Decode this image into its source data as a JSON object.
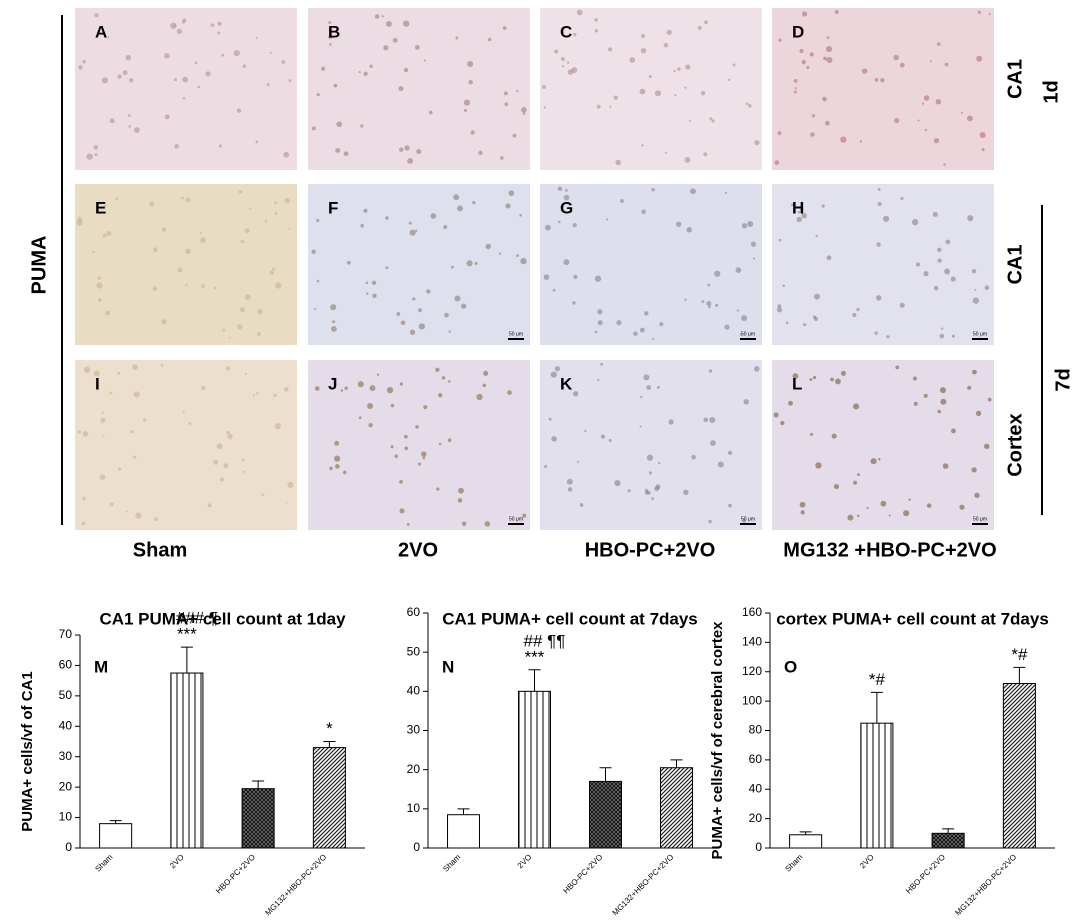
{
  "figure": {
    "side_label": "PUMA",
    "panels": [
      "A",
      "B",
      "C",
      "D",
      "E",
      "F",
      "G",
      "H",
      "I",
      "J",
      "K",
      "L"
    ],
    "columns": [
      "Sham",
      "2VO",
      "HBO-PC+2VO",
      "MG132 +HBO-PC+2VO"
    ],
    "row_labels": [
      "CA1",
      "CA1",
      "Cortex"
    ],
    "time_labels": [
      "1d",
      "7d"
    ],
    "scale_label": "50 μm"
  },
  "chart_data": [
    {
      "type": "bar",
      "panel": "M",
      "title": "CA1 PUMA+ cell count at 1day",
      "y_label": "PUMA+ cells/vf of CA1",
      "categories": [
        "Sham",
        "2VO",
        "HBO-PC+2VO",
        "MG132+HBO-PC+2VO"
      ],
      "values": [
        8,
        57.5,
        19.5,
        33
      ],
      "errors": [
        1,
        8.5,
        2.5,
        2
      ],
      "fills": [
        "solid",
        "vertical",
        "cross",
        "diagonal"
      ],
      "significance": [
        [],
        [
          "### ¶",
          "***"
        ],
        [],
        [
          "*"
        ]
      ],
      "ylim": [
        0,
        70
      ],
      "yticks": [
        0,
        10,
        20,
        30,
        40,
        50,
        60,
        70
      ]
    },
    {
      "type": "bar",
      "panel": "N",
      "title": "CA1 PUMA+ cell count at 7days",
      "categories": [
        "Sham",
        "2VO",
        "HBO-PC+2VO",
        "MG132+HBO-PC+2VO"
      ],
      "values": [
        8.5,
        40,
        17,
        20.5
      ],
      "errors": [
        1.5,
        5.5,
        3.5,
        2
      ],
      "fills": [
        "solid",
        "vertical",
        "cross",
        "diagonal"
      ],
      "significance": [
        [],
        [
          "## ¶¶",
          "***"
        ],
        [],
        []
      ],
      "ylim": [
        0,
        60
      ],
      "yticks": [
        0,
        10,
        20,
        30,
        40,
        50,
        60
      ]
    },
    {
      "type": "bar",
      "panel": "O",
      "title": "cortex PUMA+ cell count at 7days",
      "y_label": "PUMA+ cells/vf of cerebral cortex",
      "categories": [
        "Sham",
        "2VO",
        "HBO-PC+2VO",
        "MG132+HBO-PC+2VO"
      ],
      "values": [
        9,
        85,
        10,
        112
      ],
      "errors": [
        2,
        21,
        3,
        11
      ],
      "fills": [
        "solid",
        "vertical",
        "cross",
        "diagonal"
      ],
      "significance": [
        [],
        [
          "*#"
        ],
        [],
        [
          "*#"
        ]
      ],
      "ylim": [
        0,
        160
      ],
      "yticks": [
        0,
        20,
        40,
        60,
        80,
        100,
        120,
        140,
        160
      ]
    }
  ]
}
